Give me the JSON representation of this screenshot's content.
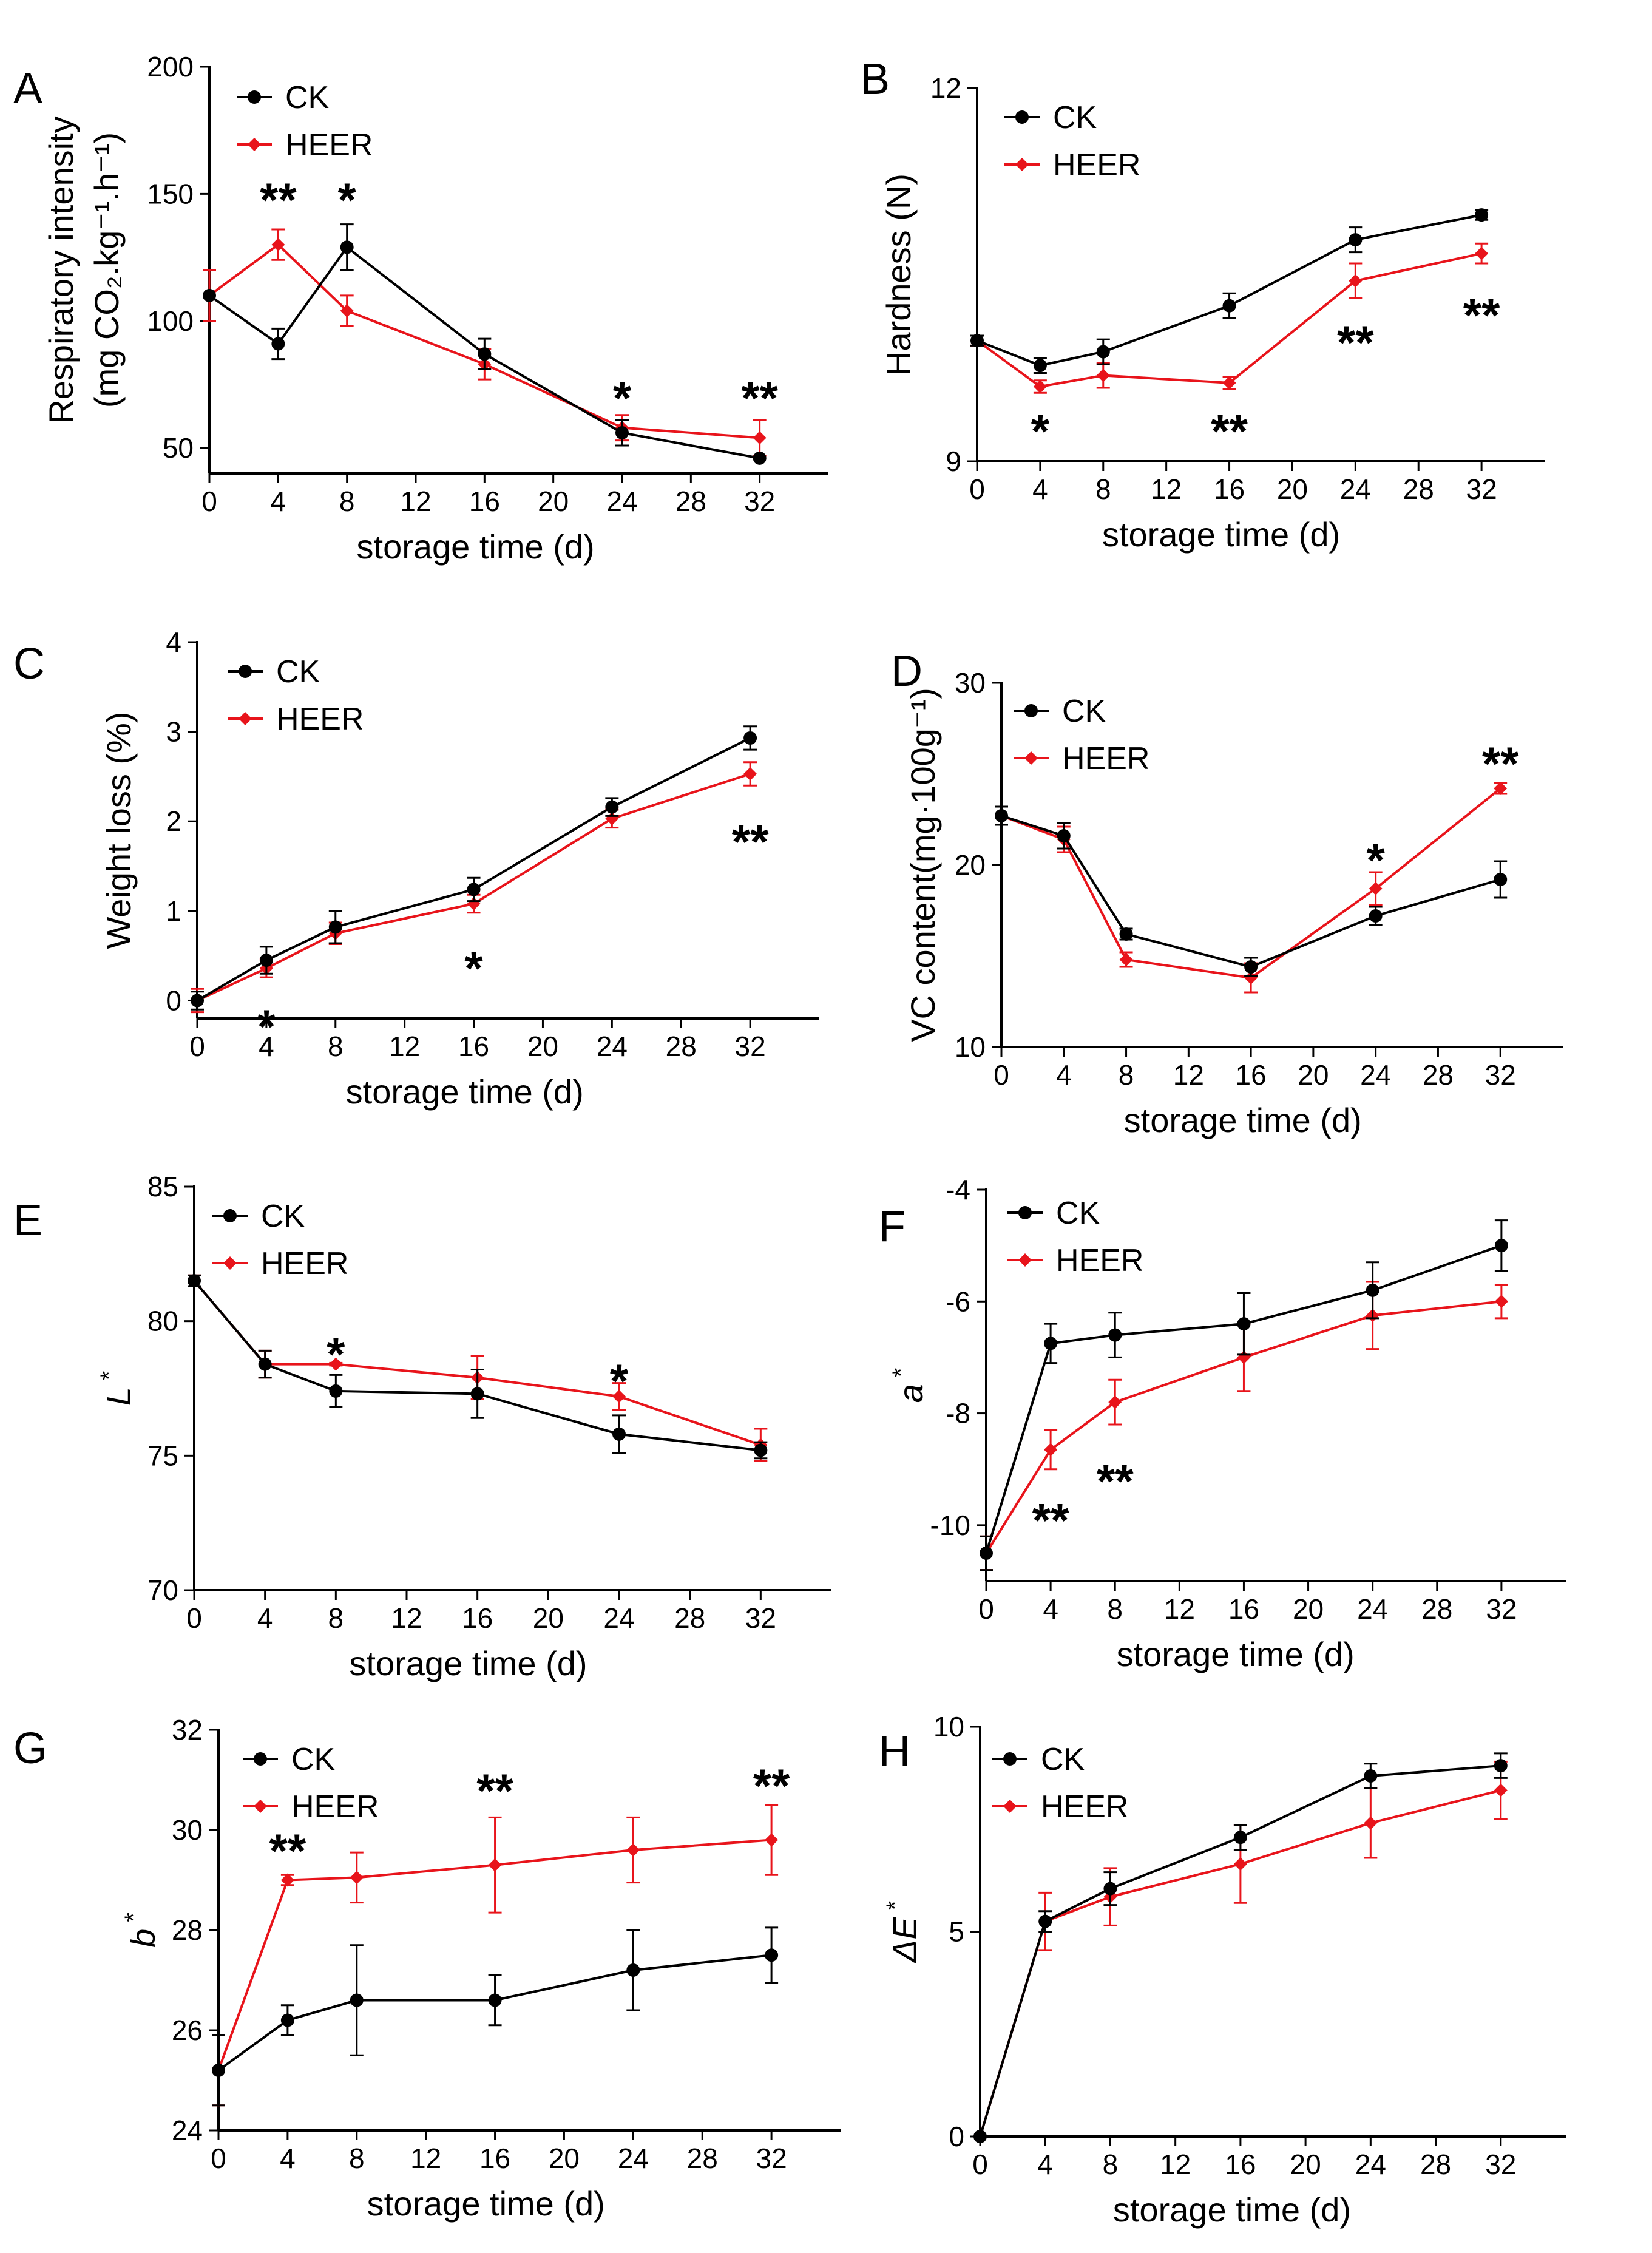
{
  "figure": {
    "legend_ck": "CK",
    "legend_heer": "HEER",
    "colors": {
      "ck": "#000000",
      "heer": "#e8141b"
    }
  },
  "chart_data": [
    {
      "panel": "A",
      "type": "line",
      "xlabel": "storage time (d)",
      "ylabel_line1": "Respiratory intensity",
      "ylabel_line2": "(mg CO₂.kg⁻¹.h⁻¹)",
      "xlim": [
        0,
        36
      ],
      "ylim": [
        40,
        200
      ],
      "xticks": [
        0,
        4,
        8,
        12,
        16,
        20,
        24,
        28,
        32
      ],
      "yticks": [
        50,
        100,
        150,
        200
      ],
      "x": [
        0,
        4,
        8,
        16,
        24,
        32
      ],
      "series": [
        {
          "name": "CK",
          "values": [
            110,
            91,
            129,
            87,
            56,
            46
          ],
          "errors": [
            0,
            6,
            9,
            6,
            5,
            0
          ]
        },
        {
          "name": "HEER",
          "values": [
            110,
            130,
            104,
            83,
            58,
            54
          ],
          "errors": [
            10,
            6,
            6,
            6,
            5,
            7
          ]
        }
      ],
      "annotations": [
        {
          "x": 4,
          "y": 148,
          "text": "**"
        },
        {
          "x": 8,
          "y": 148,
          "text": "*"
        },
        {
          "x": 24,
          "y": 70,
          "text": "*"
        },
        {
          "x": 32,
          "y": 70,
          "text": "**"
        }
      ]
    },
    {
      "panel": "B",
      "type": "line",
      "xlabel": "storage time (d)",
      "ylabel_line1": "Hardness (N)",
      "xlim": [
        0,
        36
      ],
      "ylim": [
        9,
        12
      ],
      "xticks": [
        0,
        4,
        8,
        12,
        16,
        20,
        24,
        28,
        32
      ],
      "yticks": [
        9,
        12
      ],
      "x": [
        0,
        4,
        8,
        16,
        24,
        32
      ],
      "series": [
        {
          "name": "CK",
          "values": [
            9.97,
            9.77,
            9.88,
            10.25,
            10.78,
            10.98
          ],
          "errors": [
            0.04,
            0.06,
            0.1,
            0.1,
            0.1,
            0.04
          ]
        },
        {
          "name": "HEER",
          "values": [
            9.97,
            9.6,
            9.69,
            9.63,
            10.45,
            10.67
          ],
          "errors": [
            0.04,
            0.05,
            0.1,
            0.05,
            0.14,
            0.08
          ]
        }
      ],
      "annotations": [
        {
          "x": 4,
          "y": 9.25,
          "text": "*"
        },
        {
          "x": 16,
          "y": 9.25,
          "text": "**"
        },
        {
          "x": 24,
          "y": 9.96,
          "text": "**"
        },
        {
          "x": 32,
          "y": 10.18,
          "text": "**"
        }
      ]
    },
    {
      "panel": "C",
      "type": "line",
      "xlabel": "storage time (d)",
      "ylabel_line1": "Weight loss (%)",
      "xlim": [
        0,
        36
      ],
      "ylim": [
        -0.2,
        4
      ],
      "xticks": [
        0,
        4,
        8,
        12,
        16,
        20,
        24,
        28,
        32
      ],
      "yticks": [
        0,
        1,
        2,
        3,
        4
      ],
      "x": [
        0,
        4,
        8,
        16,
        24,
        32
      ],
      "series": [
        {
          "name": "CK",
          "values": [
            0,
            0.45,
            0.82,
            1.24,
            2.16,
            2.93
          ],
          "errors": [
            0.1,
            0.15,
            0.18,
            0.13,
            0.1,
            0.13
          ]
        },
        {
          "name": "HEER",
          "values": [
            0,
            0.36,
            0.75,
            1.08,
            2.03,
            2.53
          ],
          "errors": [
            0.13,
            0.1,
            0.12,
            0.1,
            0.1,
            0.13
          ]
        }
      ],
      "annotations": [
        {
          "x": 4,
          "y": -0.28,
          "text": "*"
        },
        {
          "x": 16,
          "y": 0.37,
          "text": "*"
        },
        {
          "x": 32,
          "y": 1.78,
          "text": "**"
        }
      ]
    },
    {
      "panel": "D",
      "type": "line",
      "xlabel": "storage time (d)",
      "ylabel_line1": "VC content(mg·100g⁻¹)",
      "xlim": [
        0,
        36
      ],
      "ylim": [
        10,
        30
      ],
      "xticks": [
        0,
        4,
        8,
        12,
        16,
        20,
        24,
        28,
        32
      ],
      "yticks": [
        10,
        20,
        30
      ],
      "x": [
        0,
        4,
        8,
        16,
        24,
        32
      ],
      "series": [
        {
          "name": "CK",
          "values": [
            22.7,
            21.6,
            16.2,
            14.4,
            17.2,
            19.2
          ],
          "errors": [
            0.5,
            0.7,
            0.3,
            0.5,
            0.5,
            1.0
          ]
        },
        {
          "name": "HEER",
          "values": [
            22.7,
            21.4,
            14.8,
            13.8,
            18.7,
            24.2
          ],
          "errors": [
            0.5,
            0.7,
            0.4,
            0.8,
            0.9,
            0.3
          ]
        }
      ],
      "annotations": [
        {
          "x": 24,
          "y": 20.3,
          "text": "*"
        },
        {
          "x": 32,
          "y": 25.6,
          "text": "**"
        }
      ]
    },
    {
      "panel": "E",
      "type": "line",
      "xlabel": "storage time (d)",
      "ylabel_italic": "L",
      "ylabel_sup": "*",
      "xlim": [
        0,
        36
      ],
      "ylim": [
        70,
        85
      ],
      "xticks": [
        0,
        4,
        8,
        12,
        16,
        20,
        24,
        28,
        32
      ],
      "yticks": [
        70,
        75,
        80,
        85
      ],
      "x": [
        0,
        4,
        8,
        16,
        24,
        32
      ],
      "series": [
        {
          "name": "CK",
          "values": [
            81.5,
            78.4,
            77.4,
            77.3,
            75.8,
            75.2
          ],
          "errors": [
            0.2,
            0.5,
            0.6,
            0.9,
            0.7,
            0.3
          ]
        },
        {
          "name": "HEER",
          "values": [
            81.5,
            78.4,
            78.4,
            77.9,
            77.2,
            75.4
          ],
          "errors": [
            0.2,
            0.5,
            0.05,
            0.8,
            0.5,
            0.6
          ]
        }
      ],
      "annotations": [
        {
          "x": 8,
          "y": 78.8,
          "text": "*"
        },
        {
          "x": 24,
          "y": 77.8,
          "text": "*"
        }
      ]
    },
    {
      "panel": "F",
      "type": "line",
      "xlabel": "storage time (d)",
      "ylabel_italic": "a",
      "ylabel_sup": "*",
      "xlim": [
        0,
        36
      ],
      "ylim": [
        -11,
        -4
      ],
      "xticks": [
        0,
        4,
        8,
        12,
        16,
        20,
        24,
        28,
        32
      ],
      "yticks": [
        -10,
        -8,
        -6,
        -4
      ],
      "x": [
        0,
        4,
        8,
        16,
        24,
        32
      ],
      "series": [
        {
          "name": "CK",
          "values": [
            -10.5,
            -6.75,
            -6.6,
            -6.4,
            -5.8,
            -5.0
          ],
          "errors": [
            0.3,
            0.35,
            0.4,
            0.55,
            0.5,
            0.45
          ]
        },
        {
          "name": "HEER",
          "values": [
            -10.5,
            -8.65,
            -7.8,
            -7.0,
            -6.25,
            -6.0
          ],
          "errors": [
            0.3,
            0.35,
            0.4,
            0.6,
            0.6,
            0.3
          ]
        }
      ],
      "annotations": [
        {
          "x": 4,
          "y": -9.9,
          "text": "**"
        },
        {
          "x": 8,
          "y": -9.2,
          "text": "**"
        }
      ]
    },
    {
      "panel": "G",
      "type": "line",
      "xlabel": "storage time (d)",
      "ylabel_italic": "b",
      "ylabel_sup": "*",
      "xlim": [
        0,
        36
      ],
      "ylim": [
        24,
        32
      ],
      "xticks": [
        0,
        4,
        8,
        12,
        16,
        20,
        24,
        28,
        32
      ],
      "yticks": [
        24,
        26,
        28,
        30,
        32
      ],
      "x": [
        0,
        4,
        8,
        16,
        24,
        32
      ],
      "series": [
        {
          "name": "CK",
          "values": [
            25.2,
            26.2,
            26.6,
            26.6,
            27.2,
            27.5
          ],
          "errors": [
            0.7,
            0.3,
            1.1,
            0.5,
            0.8,
            0.55
          ]
        },
        {
          "name": "HEER",
          "values": [
            25.2,
            29.0,
            29.05,
            29.3,
            29.6,
            29.8
          ],
          "errors": [
            0.7,
            0.1,
            0.5,
            0.95,
            0.65,
            0.7
          ]
        }
      ],
      "annotations": [
        {
          "x": 4,
          "y": 29.6,
          "text": "**"
        },
        {
          "x": 16,
          "y": 30.8,
          "text": "**"
        },
        {
          "x": 32,
          "y": 30.9,
          "text": "**"
        }
      ]
    },
    {
      "panel": "H",
      "type": "line",
      "xlabel": "storage time (d)",
      "ylabel_italic": "ΔE",
      "ylabel_sup": "*",
      "xlim": [
        0,
        36
      ],
      "ylim": [
        0,
        10
      ],
      "xticks": [
        0,
        4,
        8,
        12,
        16,
        20,
        24,
        28,
        32
      ],
      "yticks": [
        0,
        5,
        10
      ],
      "x": [
        0,
        4,
        8,
        16,
        24,
        32
      ],
      "series": [
        {
          "name": "CK",
          "values": [
            0,
            5.25,
            6.05,
            7.3,
            8.8,
            9.05
          ],
          "errors": [
            0,
            0.25,
            0.4,
            0.3,
            0.3,
            0.3
          ]
        },
        {
          "name": "HEER",
          "values": [
            0,
            5.25,
            5.85,
            6.65,
            7.65,
            8.45
          ],
          "errors": [
            0,
            0.7,
            0.7,
            0.95,
            0.85,
            0.7
          ]
        }
      ],
      "annotations": []
    }
  ]
}
